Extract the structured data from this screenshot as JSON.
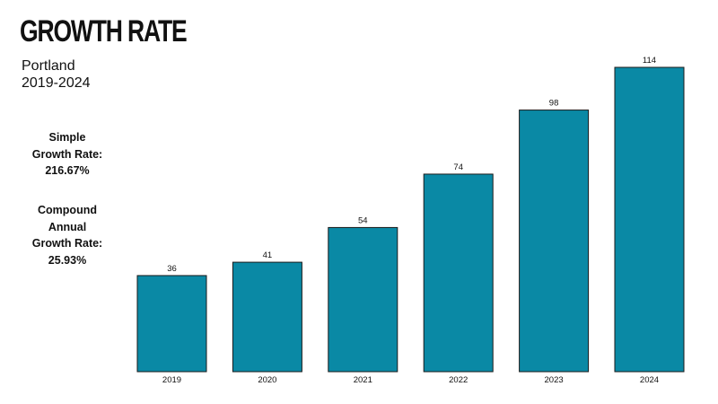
{
  "header": {
    "title": "GROWTH RATE",
    "city": "Portland",
    "years": "2019-2024"
  },
  "stats": {
    "simple_label_1": "Simple",
    "simple_label_2": "Growth Rate:",
    "simple_value": "216.67%",
    "cagr_label_1": "Compound",
    "cagr_label_2": "Annual",
    "cagr_label_3": "Growth Rate:",
    "cagr_value": "25.93%"
  },
  "colors": {
    "bar": "#0a89a5",
    "bar_stroke": "#1a1a1a"
  },
  "chart_data": {
    "type": "bar",
    "categories": [
      "2019",
      "2020",
      "2021",
      "2022",
      "2023",
      "2024"
    ],
    "values": [
      36,
      41,
      54,
      74,
      98,
      114
    ],
    "data_labels": [
      "36",
      "41",
      "54",
      "74",
      "98",
      "114"
    ],
    "title": "GROWTH RATE",
    "xlabel": "",
    "ylabel": "",
    "ylim": [
      0,
      114
    ],
    "grid": false,
    "legend": "none"
  }
}
